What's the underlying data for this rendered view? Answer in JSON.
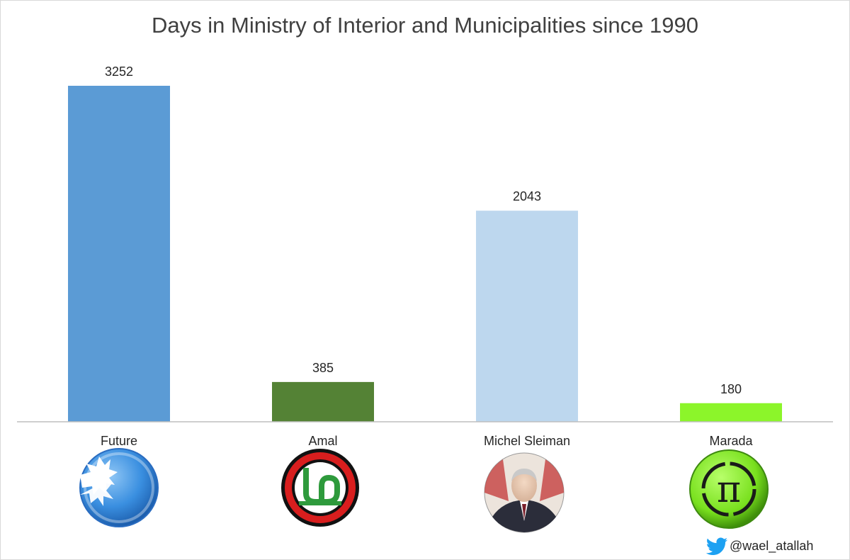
{
  "chart_data": {
    "type": "bar",
    "title": "Days in Ministry of Interior and Municipalities since 1990",
    "categories": [
      "Future",
      "Amal",
      "Michel Sleiman",
      "Marada"
    ],
    "values": [
      3252,
      385,
      2043,
      180
    ],
    "colors": [
      "#5b9bd5",
      "#548235",
      "#bdd7ee",
      "#8cf52a"
    ],
    "data_labels": [
      "3252",
      "385",
      "2043",
      "180"
    ],
    "ylim": [
      0,
      3252
    ],
    "grid": false,
    "legend": "none",
    "category_icons": [
      "future-movement-logo",
      "amal-movement-logo",
      "michel-sleiman-portrait",
      "marada-movement-logo"
    ]
  },
  "footer": {
    "icon": "twitter-bird-icon",
    "handle": "@wael_atallah"
  }
}
